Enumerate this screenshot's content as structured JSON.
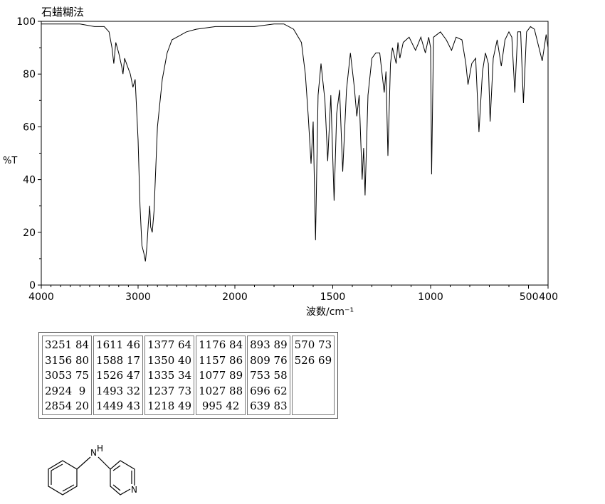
{
  "chart_data": {
    "type": "line",
    "title": "石蜡糊法",
    "xlabel": "波数/cm⁻¹",
    "ylabel": "%T",
    "xlim": [
      4000,
      400
    ],
    "ylim": [
      0,
      100
    ],
    "x_ticks": [
      4000,
      3000,
      2000,
      1500,
      1000,
      500,
      400
    ],
    "y_ticks": [
      0,
      20,
      40,
      60,
      80,
      100
    ],
    "grid": false,
    "series": [
      {
        "x": [
          4000,
          3800,
          3600,
          3450,
          3350,
          3300,
          3270,
          3251,
          3230,
          3200,
          3170,
          3156,
          3140,
          3110,
          3080,
          3053,
          3030,
          3000,
          2980,
          2960,
          2940,
          2924,
          2910,
          2895,
          2880,
          2870,
          2854,
          2835,
          2800,
          2750,
          2700,
          2650,
          2600,
          2500,
          2400,
          2200,
          2000,
          1900,
          1800,
          1750,
          1700,
          1660,
          1640,
          1625,
          1611,
          1600,
          1588,
          1575,
          1560,
          1540,
          1526,
          1510,
          1493,
          1480,
          1465,
          1449,
          1430,
          1410,
          1390,
          1377,
          1365,
          1350,
          1342,
          1335,
          1320,
          1300,
          1280,
          1260,
          1237,
          1228,
          1218,
          1205,
          1195,
          1176,
          1167,
          1157,
          1140,
          1110,
          1077,
          1050,
          1027,
          1010,
          1000,
          995,
          985,
          950,
          920,
          893,
          870,
          840,
          820,
          809,
          790,
          770,
          753,
          735,
          720,
          705,
          696,
          680,
          660,
          639,
          620,
          600,
          585,
          570,
          555,
          540,
          526,
          510,
          490,
          470,
          450,
          430,
          410,
          400
        ],
        "values": [
          99,
          99,
          99,
          98,
          98,
          96,
          90,
          84,
          92,
          88,
          83,
          80,
          86,
          83,
          80,
          75,
          78,
          55,
          30,
          15,
          12,
          9,
          14,
          23,
          30,
          22,
          20,
          28,
          60,
          78,
          88,
          93,
          94,
          96,
          97,
          98,
          98,
          98,
          99,
          99,
          97,
          92,
          80,
          64,
          46,
          62,
          17,
          72,
          84,
          70,
          47,
          72,
          32,
          65,
          74,
          43,
          74,
          88,
          75,
          64,
          72,
          40,
          52,
          34,
          72,
          86,
          88,
          88,
          73,
          81,
          49,
          84,
          90,
          84,
          92,
          86,
          92,
          94,
          89,
          94,
          88,
          94,
          90,
          42,
          94,
          96,
          93,
          89,
          94,
          93,
          84,
          76,
          84,
          86,
          58,
          81,
          88,
          84,
          62,
          86,
          93,
          83,
          93,
          96,
          94,
          73,
          96,
          96,
          69,
          96,
          98,
          97,
          91,
          85,
          95,
          90
        ]
      }
    ]
  },
  "peak_table": {
    "columns": [
      [
        "3251 84",
        "3156 80",
        "3053 75",
        "2924  9",
        "2854 20"
      ],
      [
        "1611 46",
        "1588 17",
        "1526 47",
        "1493 32",
        "1449 43"
      ],
      [
        "1377 64",
        "1350 40",
        "1335 34",
        "1237 73",
        "1218 49"
      ],
      [
        "1176 84",
        "1157 86",
        "1077 89",
        "1027 88",
        " 995 42"
      ],
      [
        "893 89",
        "809 76",
        "753 58",
        "696 62",
        "639 83"
      ],
      [
        "570 73",
        "526 69"
      ]
    ]
  },
  "structure": {
    "nh_label": "N",
    "h_label": "H",
    "n_label": "N"
  },
  "colors": {
    "line": "#000000",
    "frame": "#000000"
  }
}
